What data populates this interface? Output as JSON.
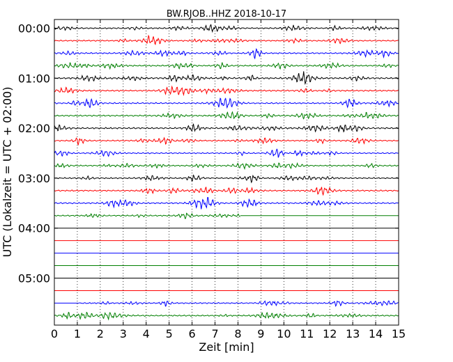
{
  "chart_data": {
    "type": "line",
    "title": "BW.RJOB..HHZ 2018-10-17",
    "xlabel": "Zeit  [min]",
    "ylabel": "UTC (Lokalzeit = UTC + 02:00)",
    "xlim": [
      0,
      15
    ],
    "x_ticks": [
      "0",
      "1",
      "2",
      "3",
      "4",
      "5",
      "6",
      "7",
      "8",
      "9",
      "10",
      "11",
      "12",
      "13",
      "14",
      "15"
    ],
    "y_tick_labels": [
      "00:00",
      "01:00",
      "02:00",
      "03:00",
      "04:00",
      "05:00"
    ],
    "grid": "vertical dotted lines at each minute",
    "colors": [
      "#000000",
      "#ff0000",
      "#0000ff",
      "#007f00"
    ],
    "traces": [
      {
        "label_time": "00:00",
        "color": "#000000",
        "amplitude": 0.45,
        "data_start_min": 0,
        "data_end_min": 15
      },
      {
        "label_time": "00:15",
        "color": "#ff0000",
        "amplitude": 0.45,
        "data_start_min": 0,
        "data_end_min": 15
      },
      {
        "label_time": "00:30",
        "color": "#0000ff",
        "amplitude": 0.5,
        "data_start_min": 0,
        "data_end_min": 15
      },
      {
        "label_time": "00:45",
        "color": "#007f00",
        "amplitude": 0.5,
        "data_start_min": 0,
        "data_end_min": 15
      },
      {
        "label_time": "01:00",
        "color": "#000000",
        "amplitude": 0.55,
        "data_start_min": 0,
        "data_end_min": 15
      },
      {
        "label_time": "01:15",
        "color": "#ff0000",
        "amplitude": 0.5,
        "data_start_min": 0,
        "data_end_min": 15
      },
      {
        "label_time": "01:30",
        "color": "#0000ff",
        "amplitude": 0.5,
        "data_start_min": 0,
        "data_end_min": 15
      },
      {
        "label_time": "01:45",
        "color": "#007f00",
        "amplitude": 0.5,
        "data_start_min": 0,
        "data_end_min": 15
      },
      {
        "label_time": "02:00",
        "color": "#000000",
        "amplitude": 0.55,
        "data_start_min": 0,
        "data_end_min": 15
      },
      {
        "label_time": "02:15",
        "color": "#ff0000",
        "amplitude": 0.45,
        "data_start_min": 0,
        "data_end_min": 15
      },
      {
        "label_time": "02:30",
        "color": "#0000ff",
        "amplitude": 0.45,
        "data_start_min": 0,
        "data_end_min": 15
      },
      {
        "label_time": "02:45",
        "color": "#007f00",
        "amplitude": 0.45,
        "data_start_min": 0,
        "data_end_min": 15
      },
      {
        "label_time": "03:00",
        "color": "#000000",
        "amplitude": 0.45,
        "data_start_min": 0,
        "data_end_min": 15
      },
      {
        "label_time": "03:15",
        "color": "#ff0000",
        "amplitude": 0.5,
        "data_start_min": 0,
        "data_end_min": 15
      },
      {
        "label_time": "03:30",
        "color": "#0000ff",
        "amplitude": 0.5,
        "data_start_min": 0,
        "data_end_min": 15
      },
      {
        "label_time": "03:45",
        "color": "#007f00",
        "amplitude": 0.45,
        "data_start_min": 0,
        "data_end_min": 8.1
      },
      {
        "label_time": "04:00",
        "color": "#000000",
        "amplitude": 0,
        "data_start_min": 0,
        "data_end_min": 15
      },
      {
        "label_time": "04:15",
        "color": "#ff0000",
        "amplitude": 0,
        "data_start_min": 0,
        "data_end_min": 15
      },
      {
        "label_time": "04:30",
        "color": "#0000ff",
        "amplitude": 0,
        "data_start_min": 0,
        "data_end_min": 15
      },
      {
        "label_time": "04:45",
        "color": "#007f00",
        "amplitude": 0,
        "data_start_min": 0,
        "data_end_min": 15
      },
      {
        "label_time": "05:00",
        "color": "#000000",
        "amplitude": 0,
        "data_start_min": 0,
        "data_end_min": 15
      },
      {
        "label_time": "05:15",
        "color": "#ff0000",
        "amplitude": 0,
        "data_start_min": 0,
        "data_end_min": 15
      },
      {
        "label_time": "05:30",
        "color": "#0000ff",
        "amplitude": 0.45,
        "data_start_min": 1.1,
        "data_end_min": 15
      },
      {
        "label_time": "05:45",
        "color": "#007f00",
        "amplitude": 0.5,
        "data_start_min": 0,
        "data_end_min": 15
      }
    ]
  }
}
